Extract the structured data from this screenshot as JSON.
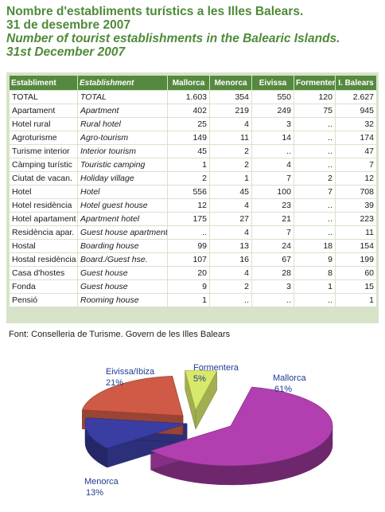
{
  "title": {
    "ca_line1": "Nombre d'estabIiments turístics a les Illes Balears.",
    "ca_line2": "31 de desembre 2007",
    "en_line1": "Number of tourist establishments in the Balearic Islands.",
    "en_line2": "31st December 2007"
  },
  "table": {
    "headers": [
      "Establiment",
      "Establishment",
      "Mallorca",
      "Menorca",
      "Eivissa",
      "Formentera",
      "I. Balears"
    ],
    "rows": [
      [
        "TOTAL",
        "TOTAL",
        "1.603",
        "354",
        "550",
        "120",
        "2.627"
      ],
      [
        "Apartament",
        "Apartment",
        "402",
        "219",
        "249",
        "75",
        "945"
      ],
      [
        "Hotel rural",
        "Rural hotel",
        "25",
        "4",
        "3",
        "..",
        "32"
      ],
      [
        "Agroturisme",
        "Agro-tourism",
        "149",
        "11",
        "14",
        "..",
        "174"
      ],
      [
        "Turisme interior",
        "Interior tourism",
        "45",
        "2",
        "..",
        "..",
        "47"
      ],
      [
        "Càmping turístic",
        "Touristic camping",
        "1",
        "2",
        "4",
        "..",
        "7"
      ],
      [
        "Ciutat de vacan.",
        "Holiday village",
        "2",
        "1",
        "7",
        "2",
        "12"
      ],
      [
        "Hotel",
        "Hotel",
        "556",
        "45",
        "100",
        "7",
        "708"
      ],
      [
        "Hotel residència",
        "Hotel guest house",
        "12",
        "4",
        "23",
        "..",
        "39"
      ],
      [
        "Hotel apartament",
        "Apartment hotel",
        "175",
        "27",
        "21",
        "..",
        "223"
      ],
      [
        "Residència apar.",
        "Guest house apartment",
        "..",
        "4",
        "7",
        "..",
        "11"
      ],
      [
        "Hostal",
        "Boarding house",
        "99",
        "13",
        "24",
        "18",
        "154"
      ],
      [
        "Hostal residència",
        "Board./Guest hse.",
        "107",
        "16",
        "67",
        "9",
        "199"
      ],
      [
        "Casa d'hostes",
        "Guest house",
        "20",
        "4",
        "28",
        "8",
        "60"
      ],
      [
        "Fonda",
        "Guest house",
        "9",
        "2",
        "3",
        "1",
        "15"
      ],
      [
        "Pensió",
        "Rooming house",
        "1",
        "..",
        "..",
        "..",
        "1"
      ]
    ]
  },
  "source": "Font: Conselleria de Turisme. Govern de les Illes Balears",
  "pie": {
    "slices": [
      {
        "name": "Mallorca",
        "percent": "61%",
        "value": 61,
        "color": "#b23fb0"
      },
      {
        "name": "Menorca",
        "percent": "13%",
        "value": 13,
        "color": "#3a3ea3"
      },
      {
        "name": "Eivissa/Ibiza",
        "percent": "21%",
        "value": 21,
        "color": "#cf5a45"
      },
      {
        "name": "Formentera",
        "percent": "5%",
        "value": 5,
        "color": "#d8e86a"
      }
    ]
  }
}
